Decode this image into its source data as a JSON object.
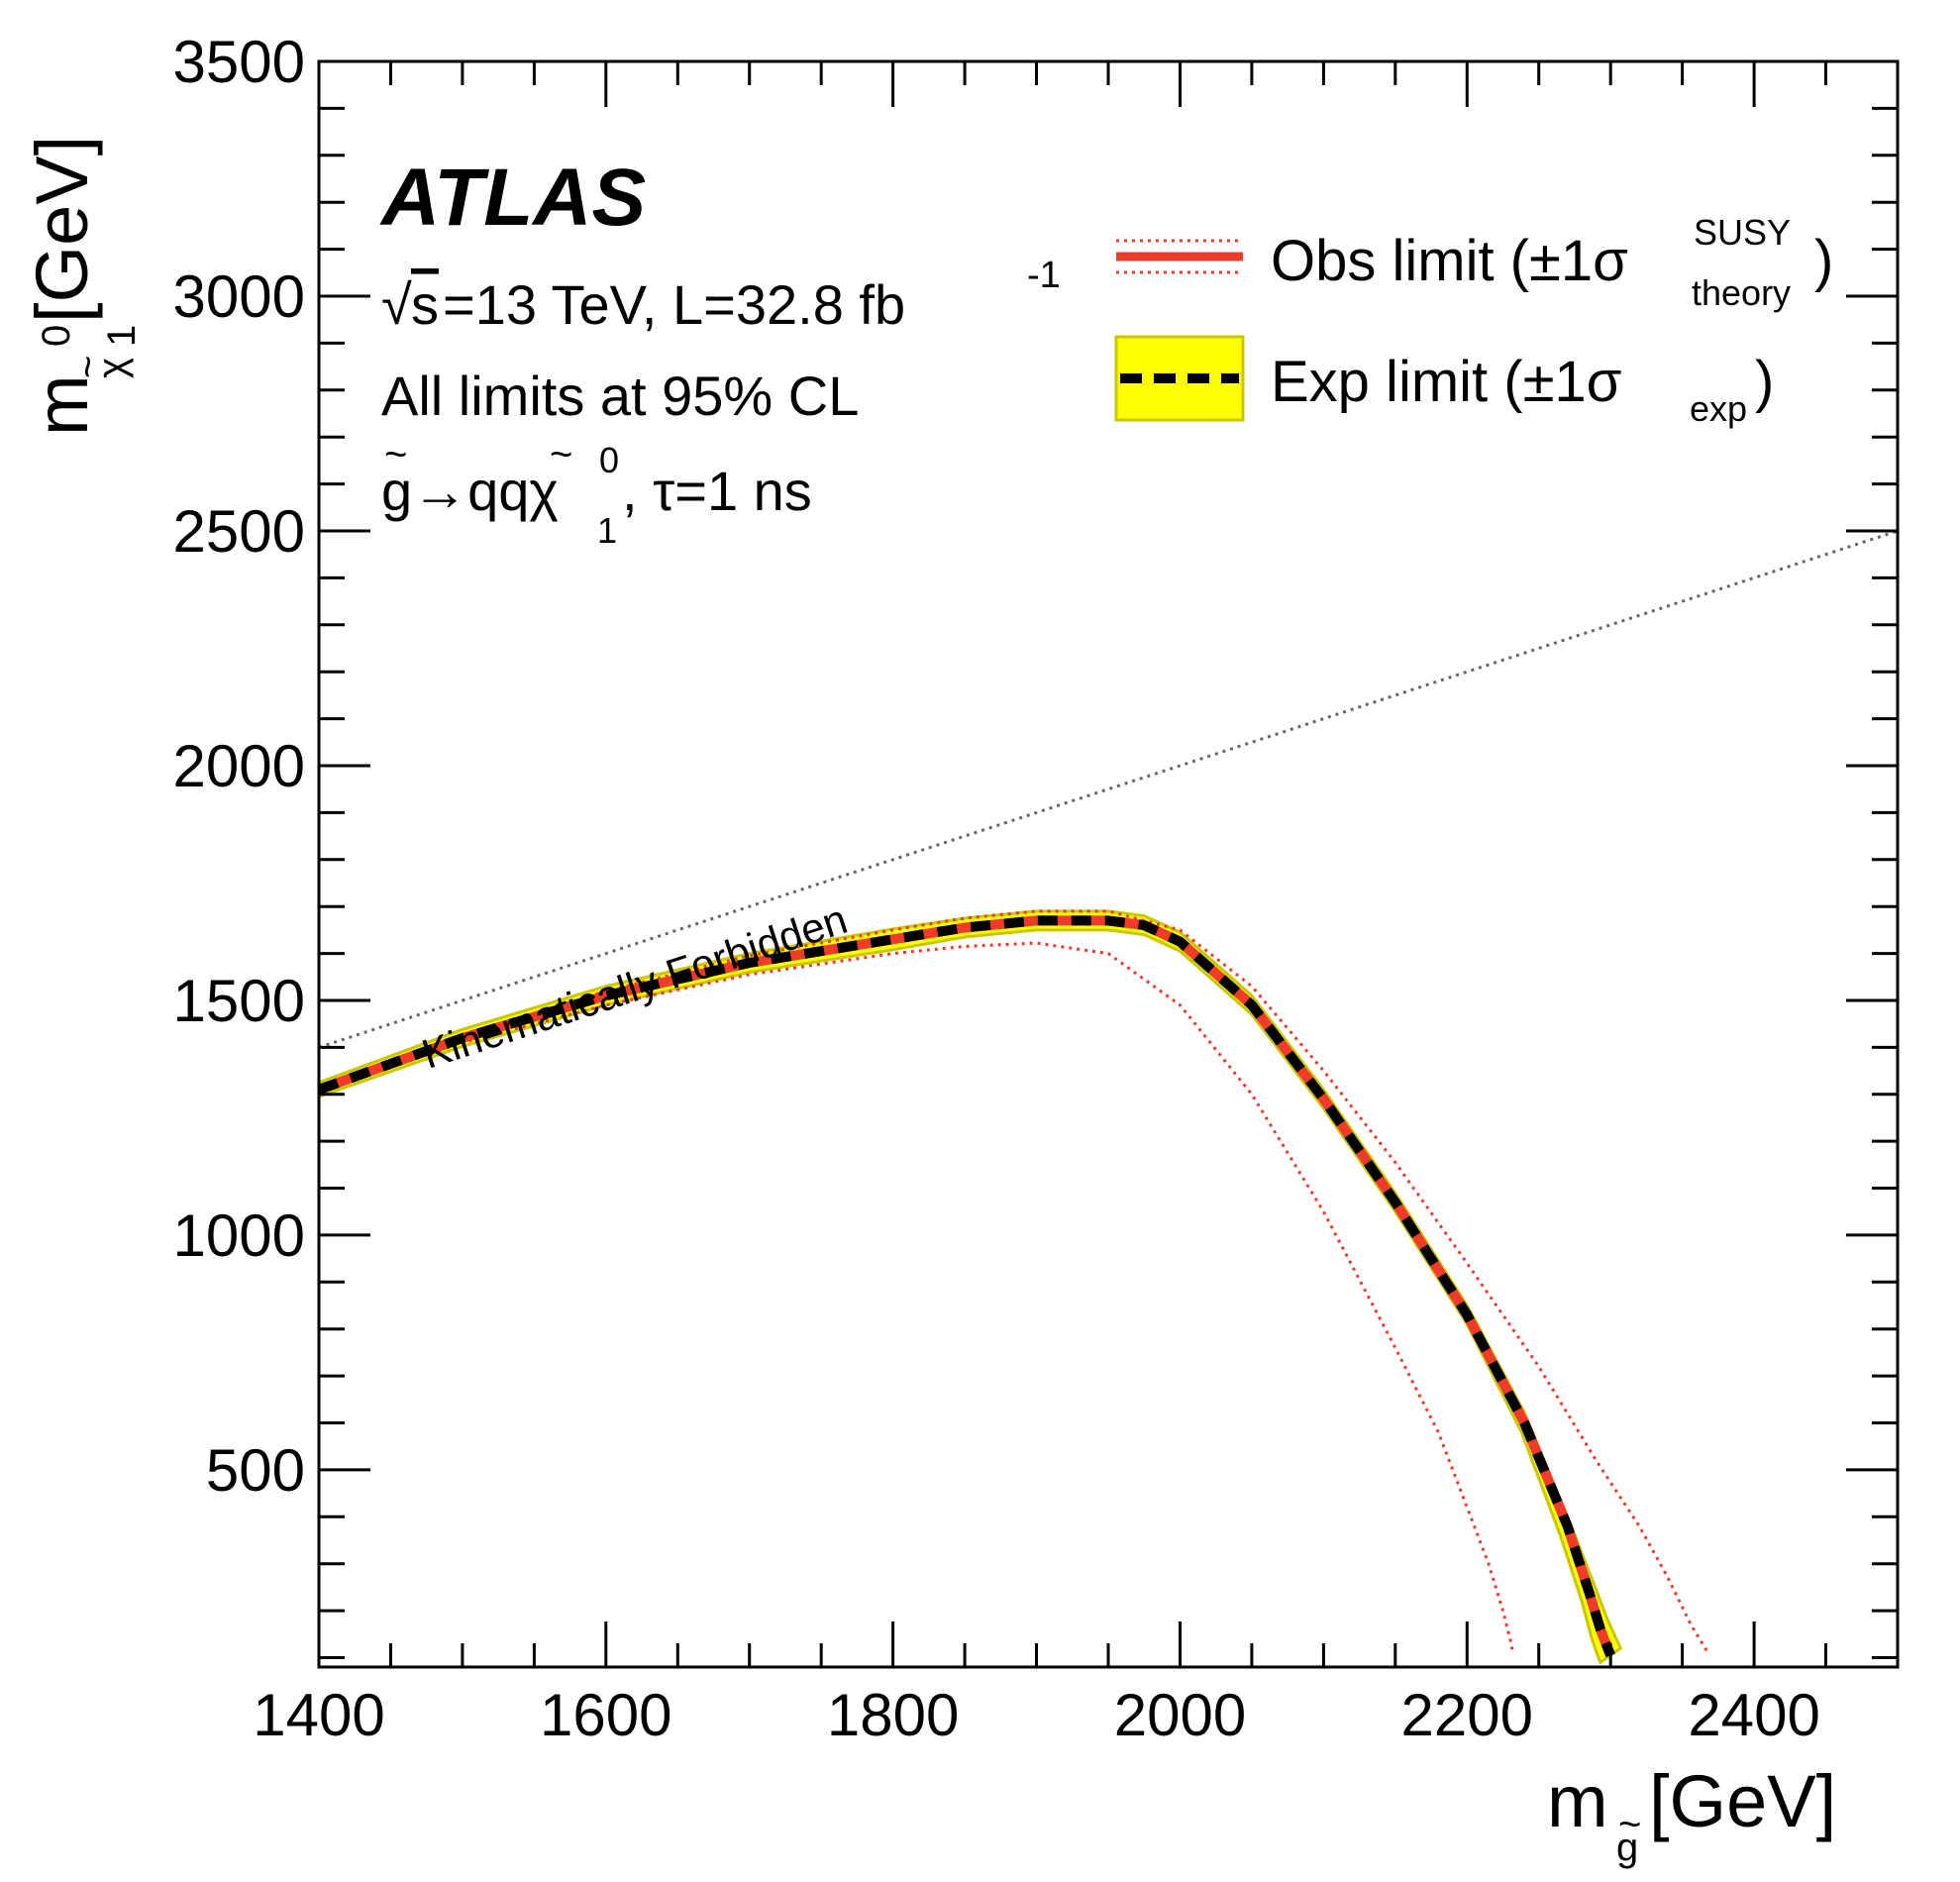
{
  "chart_data": {
    "type": "line",
    "title": "",
    "experiment_label": "ATLAS",
    "annotations": {
      "energy_sqrt": "√",
      "energy_s": "s",
      "energy_text": "=13 TeV, L=32.8 fb",
      "lumi_exp": "-1",
      "cl_text": "All limits at 95% CL",
      "process_text": "g→qqχ",
      "process_sup": "0",
      "process_sub": "1",
      "process_tau": ", τ=1 ns",
      "tilde": "~",
      "forbidden_text": "Kinematically Forbidden"
    },
    "xlabel": {
      "main": "m",
      "sub": "g",
      "tilde": "~",
      "unit": " [GeV]"
    },
    "ylabel": {
      "main": "m",
      "sub_sym": "χ",
      "sup": "0",
      "sub": "1",
      "tilde": "~",
      "unit": " [GeV]"
    },
    "xlim": [
      1400,
      2500
    ],
    "ylim": [
      80,
      3500
    ],
    "x_ticks": [
      1400,
      1600,
      1800,
      2000,
      2200,
      2400
    ],
    "x_tick_labels": [
      "1400",
      "1600",
      "1800",
      "2000",
      "2200",
      "2400"
    ],
    "y_ticks": [
      500,
      1000,
      1500,
      2000,
      2500,
      3000,
      3500
    ],
    "y_tick_labels": [
      "500",
      "1000",
      "1500",
      "2000",
      "2500",
      "3000",
      "3500"
    ],
    "legend": {
      "position": "top-right",
      "entries": [
        {
          "label": "Obs limit (±1σ",
          "sup": "SUSY",
          "sub": "theory",
          "close": ")"
        },
        {
          "label": "Exp limit (±1σ",
          "sub": "exp",
          "close": ")"
        }
      ]
    },
    "colors": {
      "obs": "#ef3b2c",
      "exp": "#000000",
      "band_fill": "#ffff00",
      "band_edge": "#c8c800",
      "forbidden_line": "#666666",
      "forbidden_text": "#999999"
    },
    "series": [
      {
        "name": "Expected limit",
        "x": [
          1400,
          1500,
          1600,
          1700,
          1800,
          1850,
          1900,
          1950,
          1975,
          2000,
          2050,
          2100,
          2150,
          2200,
          2240,
          2270,
          2285,
          2293,
          2298,
          2300
        ],
        "y": [
          1310,
          1420,
          1510,
          1580,
          1630,
          1655,
          1670,
          1670,
          1660,
          1625,
          1490,
          1290,
          1070,
          830,
          600,
          380,
          240,
          160,
          120,
          105
        ]
      },
      {
        "name": "Expected band upper",
        "x": [
          1400,
          1500,
          1600,
          1700,
          1800,
          1850,
          1900,
          1950,
          1975,
          2000,
          2050,
          2100,
          2150,
          2200,
          2240,
          2270,
          2288,
          2298,
          2304,
          2307
        ],
        "y": [
          1325,
          1438,
          1530,
          1600,
          1652,
          1675,
          1690,
          1690,
          1680,
          1645,
          1510,
          1310,
          1090,
          850,
          622,
          400,
          260,
          180,
          140,
          120
        ]
      },
      {
        "name": "Expected band lower",
        "x": [
          1400,
          1500,
          1600,
          1700,
          1800,
          1850,
          1900,
          1950,
          1975,
          2000,
          2050,
          2100,
          2150,
          2200,
          2238,
          2265,
          2280,
          2287,
          2291,
          2293
        ],
        "y": [
          1295,
          1402,
          1490,
          1560,
          1608,
          1635,
          1650,
          1650,
          1640,
          1605,
          1470,
          1270,
          1050,
          810,
          580,
          360,
          220,
          140,
          105,
          90
        ]
      },
      {
        "name": "Observed limit",
        "x": [
          1400,
          1500,
          1600,
          1700,
          1800,
          1850,
          1900,
          1950,
          1975,
          2000,
          2050,
          2100,
          2150,
          2200,
          2240,
          2270,
          2285,
          2293,
          2298,
          2300
        ],
        "y": [
          1310,
          1420,
          1510,
          1580,
          1630,
          1655,
          1670,
          1670,
          1660,
          1625,
          1490,
          1290,
          1070,
          830,
          600,
          380,
          240,
          160,
          120,
          105
        ]
      },
      {
        "name": "Observed +1σ theory",
        "x": [
          1400,
          1500,
          1600,
          1700,
          1800,
          1850,
          1900,
          1950,
          2000,
          2050,
          2100,
          2150,
          2200,
          2250,
          2290,
          2320,
          2340,
          2356,
          2368
        ],
        "y": [
          1312,
          1425,
          1520,
          1595,
          1650,
          1675,
          1690,
          1690,
          1650,
          1530,
          1350,
          1155,
          940,
          720,
          520,
          380,
          270,
          170,
          110
        ]
      },
      {
        "name": "Observed -1σ theory",
        "x": [
          1400,
          1500,
          1600,
          1700,
          1800,
          1850,
          1900,
          1950,
          2000,
          2050,
          2100,
          2150,
          2180,
          2200,
          2215,
          2225,
          2230,
          2232
        ],
        "y": [
          1305,
          1410,
          1490,
          1555,
          1600,
          1615,
          1622,
          1600,
          1490,
          1300,
          1050,
          760,
          580,
          420,
          300,
          200,
          140,
          110
        ]
      },
      {
        "name": "Kinematic limit",
        "x": [
          1400,
          2500
        ],
        "y": [
          1400,
          2500
        ]
      }
    ]
  }
}
